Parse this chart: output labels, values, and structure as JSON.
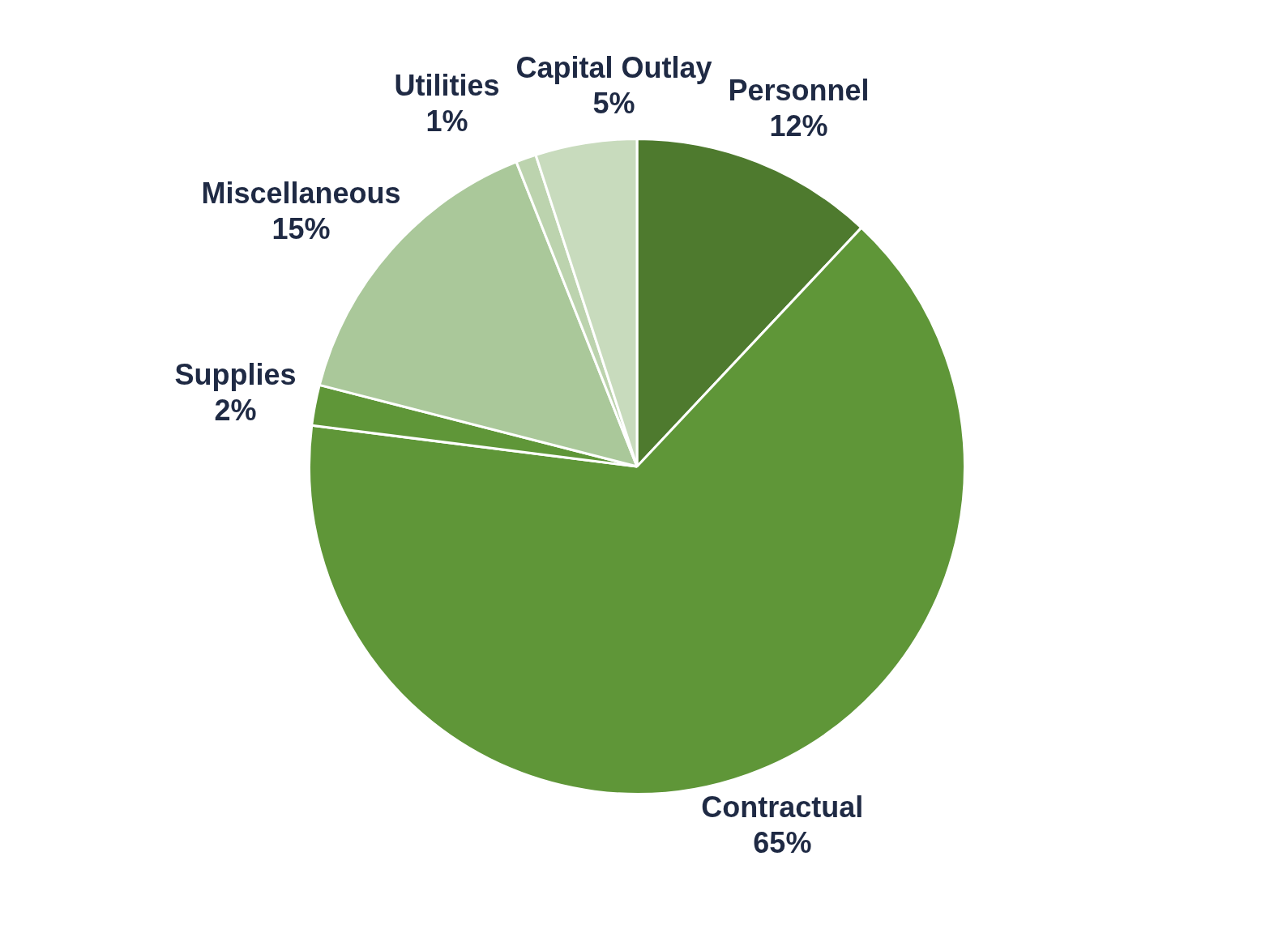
{
  "chart_data": {
    "type": "pie",
    "categories": [
      "Personnel",
      "Contractual",
      "Supplies",
      "Miscellaneous",
      "Utilities",
      "Capital Outlay"
    ],
    "values": [
      12,
      65,
      2,
      15,
      1,
      5
    ],
    "value_labels": [
      "12%",
      "65%",
      "2%",
      "15%",
      "1%",
      "5%"
    ],
    "colors": [
      "#4e7a2e",
      "#5f9638",
      "#5f9638",
      "#aac89a",
      "#bcd3ae",
      "#c8dbbd"
    ],
    "legend": false
  }
}
